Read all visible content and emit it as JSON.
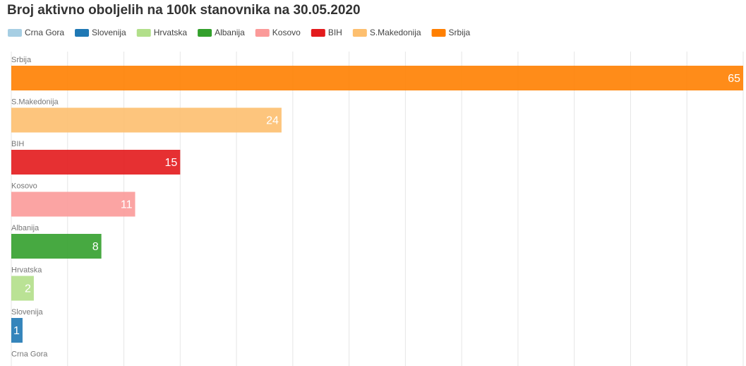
{
  "chart_data": {
    "type": "hbar",
    "title": "Broj aktivno oboljelih na 100k stanovnika na 30.05.2020",
    "categories": [
      "Srbija",
      "S.Makedonija",
      "BIH",
      "Kosovo",
      "Albanija",
      "Hrvatska",
      "Slovenija",
      "Crna Gora"
    ],
    "values": [
      65,
      24,
      15,
      11,
      8,
      2,
      1,
      0
    ],
    "colors": [
      "#ff7f00",
      "#fdbf6f",
      "#e31a1c",
      "#fb9a99",
      "#33a02c",
      "#b2df8a",
      "#1f78b4",
      "#a6cee3"
    ],
    "xlim": [
      0,
      65
    ],
    "xticks": [
      0,
      5,
      10,
      15,
      20,
      25,
      30,
      35,
      40,
      45,
      50,
      55,
      60,
      65
    ],
    "grid": true
  }
}
